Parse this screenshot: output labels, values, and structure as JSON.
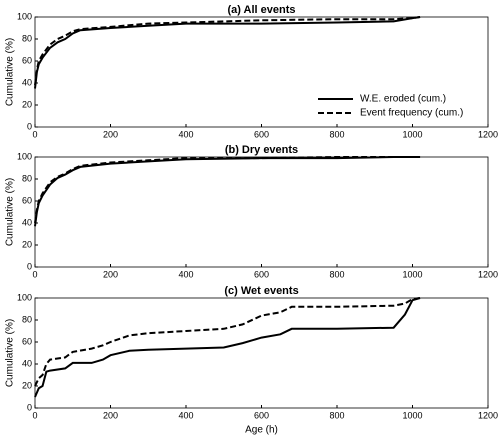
{
  "chart_data": [
    {
      "type": "line",
      "title": "(a) All events",
      "y_label": "Cumulative (%)",
      "x": [
        0,
        5,
        10,
        20,
        40,
        60,
        80,
        100,
        120,
        200,
        300,
        400,
        600,
        800,
        950,
        1000,
        1020
      ],
      "series": [
        {
          "name": "W.E. eroded (cum.)",
          "color": "#000000",
          "dashed": false,
          "values": [
            35,
            50,
            57,
            63,
            72,
            77,
            80,
            85,
            88,
            90,
            92,
            94,
            94,
            95,
            96,
            99,
            100
          ]
        },
        {
          "name": "Event frequency (cum.)",
          "color": "#000000",
          "dashed": true,
          "values": [
            38,
            52,
            60,
            66,
            75,
            80,
            83,
            87,
            89,
            91,
            94,
            95,
            97,
            98,
            98,
            99,
            100
          ]
        }
      ],
      "xlim": [
        0,
        1200
      ],
      "xticks": [
        0,
        200,
        400,
        600,
        800,
        1000,
        1200
      ],
      "ylim": [
        0,
        100
      ],
      "yticks": [
        0,
        20,
        40,
        60,
        80,
        100
      ],
      "legend": "right"
    },
    {
      "type": "line",
      "title": "(b) Dry events",
      "y_label": "Cumulative (%)",
      "x": [
        0,
        5,
        10,
        20,
        40,
        60,
        80,
        100,
        120,
        200,
        300,
        400,
        600,
        800,
        950,
        1000,
        1020
      ],
      "series": [
        {
          "color": "#000000",
          "dashed": false,
          "values": [
            37,
            50,
            58,
            65,
            75,
            81,
            84,
            88,
            91,
            94,
            96,
            98,
            99,
            99,
            100,
            100,
            100
          ]
        },
        {
          "color": "#000000",
          "dashed": true,
          "values": [
            40,
            52,
            60,
            67,
            77,
            82,
            85,
            89,
            92,
            95,
            97,
            99,
            99,
            100,
            100,
            100,
            100
          ]
        }
      ],
      "xlim": [
        0,
        1200
      ],
      "xticks": [
        0,
        200,
        400,
        600,
        800,
        1000,
        1200
      ],
      "ylim": [
        0,
        100
      ],
      "yticks": [
        0,
        20,
        40,
        60,
        80,
        100
      ]
    },
    {
      "type": "line",
      "title": "(c) Wet events",
      "y_label": "Cumulative (%)",
      "x_label": "Age (h)",
      "x": [
        0,
        10,
        20,
        30,
        40,
        80,
        100,
        150,
        180,
        200,
        250,
        300,
        400,
        500,
        550,
        600,
        650,
        680,
        800,
        950,
        980,
        1000,
        1020
      ],
      "series": [
        {
          "color": "#000000",
          "dashed": false,
          "values": [
            10,
            18,
            20,
            33,
            34,
            36,
            41,
            41,
            44,
            48,
            52,
            53,
            54,
            55,
            59,
            64,
            67,
            72,
            72,
            73,
            85,
            98,
            100
          ]
        },
        {
          "color": "#000000",
          "dashed": true,
          "values": [
            20,
            27,
            30,
            40,
            44,
            46,
            51,
            54,
            57,
            60,
            66,
            68,
            70,
            72,
            76,
            84,
            87,
            92,
            92,
            93,
            95,
            99,
            100
          ]
        }
      ],
      "xlim": [
        0,
        1200
      ],
      "xticks": [
        0,
        200,
        400,
        600,
        800,
        1000,
        1200
      ],
      "ylim": [
        0,
        100
      ],
      "yticks": [
        0,
        20,
        40,
        60,
        80,
        100
      ]
    }
  ]
}
